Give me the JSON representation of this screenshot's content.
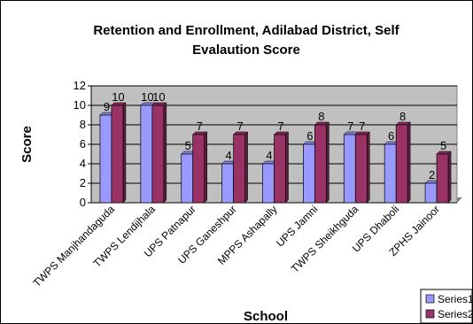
{
  "chart_data": {
    "type": "bar",
    "title_line1": "Retention and Enrollment, Adilabad District, Self",
    "title_line2": "Evalaution Score",
    "xlabel": "School",
    "ylabel": "Score",
    "ylim": [
      0,
      12
    ],
    "yticks": [
      "0",
      "2",
      "4",
      "6",
      "8",
      "10",
      "12"
    ],
    "grid": true,
    "legend_position": "bottom-right",
    "categories": [
      "TWPS Manjhandaguda",
      "TWPS Lendijhala",
      "UPS Patnapur",
      "UPS Ganeshpur",
      "MPPS Ashapally",
      "UPS Jamni",
      "TWPS Sheikhguda",
      "UPS Dhaboli",
      "ZPHS Jainoor"
    ],
    "series": [
      {
        "name": "Series1",
        "color": "#9999ff",
        "values": [
          9,
          10,
          5,
          4,
          4,
          6,
          7,
          6,
          2
        ]
      },
      {
        "name": "Series2",
        "color": "#993366",
        "values": [
          10,
          10,
          7,
          7,
          7,
          8,
          7,
          8,
          5
        ]
      }
    ],
    "plot_background": "#c0c0c0"
  }
}
